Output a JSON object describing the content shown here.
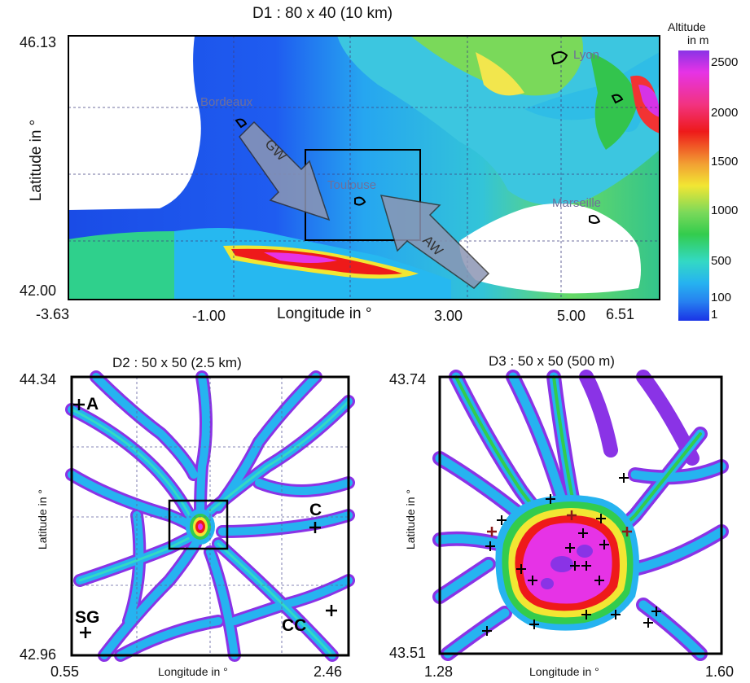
{
  "d1": {
    "title": "D1 : 80 x 40 (10 km)",
    "ylabel": "Latitude in °",
    "xlabel": "Longitude in °",
    "y_ticks": [
      "46.13",
      "42.00"
    ],
    "x_ticks": [
      "-3.63",
      "-1.00",
      "3.00",
      "5.00",
      "6.51"
    ],
    "cities": [
      "Lyon",
      "Bordeaux",
      "Toulouse",
      "Marseille"
    ],
    "winds": [
      "GW",
      "AW"
    ]
  },
  "colorbar": {
    "title_line1": "Altitude",
    "title_line2": "in m",
    "labels": [
      "2500",
      "2000",
      "1500",
      "1000",
      "500",
      "100",
      "1"
    ]
  },
  "d2": {
    "title": "D2 : 50 x 50 (2.5 km)",
    "ylabel": "Latitude in °",
    "xlabel": "Longitude in °",
    "y_ticks": [
      "44.34",
      "42.96"
    ],
    "x_ticks": [
      "0.55",
      "2.46"
    ],
    "stations": [
      "A",
      "C",
      "SG",
      "CC"
    ]
  },
  "d3": {
    "title": "D3 : 50 x 50 (500 m)",
    "ylabel": "Latitude in °",
    "xlabel": "Longitude in °",
    "y_ticks": [
      "43.74",
      "43.51"
    ],
    "x_ticks": [
      "1.28",
      "1.60"
    ]
  },
  "colors": {
    "low": "#1a33e6",
    "mid": "#26b3f0",
    "green": "#33cc4d",
    "yellow": "#f2e633",
    "red": "#ee1a1a",
    "magenta": "#e633e6",
    "purple": "#8a33e6"
  }
}
